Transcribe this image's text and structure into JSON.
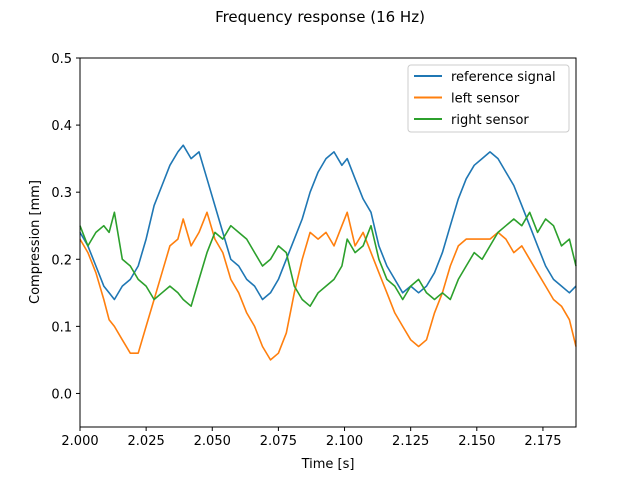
{
  "chart_data": {
    "type": "line",
    "title": "Frequency response (16 Hz)",
    "xlabel": "Time [s]",
    "ylabel": "Compression [mm]",
    "xlim": [
      2.0,
      2.1875
    ],
    "ylim": [
      -0.05,
      0.5
    ],
    "xticks": [
      2.0,
      2.025,
      2.05,
      2.075,
      2.1,
      2.125,
      2.15,
      2.175
    ],
    "xtick_labels": [
      "2.000",
      "2.025",
      "2.050",
      "2.075",
      "2.100",
      "2.125",
      "2.150",
      "2.175"
    ],
    "yticks": [
      0.0,
      0.1,
      0.2,
      0.3,
      0.4,
      0.5
    ],
    "ytick_labels": [
      "0.0",
      "0.1",
      "0.2",
      "0.3",
      "0.4",
      "0.5"
    ],
    "grid": false,
    "legend_position": "top-right",
    "series": [
      {
        "name": "reference signal",
        "color": "#1f77b4",
        "x": [
          2.0,
          2.003,
          2.006,
          2.009,
          2.011,
          2.013,
          2.016,
          2.019,
          2.022,
          2.025,
          2.028,
          2.031,
          2.034,
          2.037,
          2.039,
          2.042,
          2.045,
          2.048,
          2.051,
          2.054,
          2.057,
          2.06,
          2.063,
          2.066,
          2.069,
          2.072,
          2.075,
          2.078,
          2.081,
          2.084,
          2.087,
          2.09,
          2.093,
          2.096,
          2.099,
          2.101,
          2.104,
          2.107,
          2.11,
          2.113,
          2.116,
          2.119,
          2.122,
          2.125,
          2.128,
          2.131,
          2.134,
          2.137,
          2.14,
          2.143,
          2.146,
          2.149,
          2.152,
          2.155,
          2.158,
          2.161,
          2.164,
          2.167,
          2.17,
          2.173,
          2.176,
          2.179,
          2.182,
          2.185,
          2.1875
        ],
        "y": [
          0.24,
          0.22,
          0.19,
          0.16,
          0.15,
          0.14,
          0.16,
          0.17,
          0.19,
          0.23,
          0.28,
          0.31,
          0.34,
          0.36,
          0.37,
          0.35,
          0.36,
          0.32,
          0.28,
          0.24,
          0.2,
          0.19,
          0.17,
          0.16,
          0.14,
          0.15,
          0.17,
          0.2,
          0.23,
          0.26,
          0.3,
          0.33,
          0.35,
          0.36,
          0.34,
          0.35,
          0.32,
          0.29,
          0.27,
          0.22,
          0.19,
          0.17,
          0.15,
          0.16,
          0.15,
          0.16,
          0.18,
          0.21,
          0.25,
          0.29,
          0.32,
          0.34,
          0.35,
          0.36,
          0.35,
          0.33,
          0.31,
          0.28,
          0.25,
          0.22,
          0.19,
          0.17,
          0.16,
          0.15,
          0.16
        ]
      },
      {
        "name": "left sensor",
        "color": "#ff7f0e",
        "x": [
          2.0,
          2.003,
          2.006,
          2.009,
          2.011,
          2.013,
          2.016,
          2.019,
          2.022,
          2.025,
          2.028,
          2.031,
          2.034,
          2.037,
          2.039,
          2.042,
          2.045,
          2.048,
          2.051,
          2.054,
          2.057,
          2.06,
          2.063,
          2.066,
          2.069,
          2.072,
          2.075,
          2.078,
          2.081,
          2.084,
          2.087,
          2.09,
          2.093,
          2.096,
          2.099,
          2.101,
          2.104,
          2.107,
          2.11,
          2.113,
          2.116,
          2.119,
          2.122,
          2.125,
          2.128,
          2.131,
          2.134,
          2.137,
          2.14,
          2.143,
          2.146,
          2.149,
          2.152,
          2.155,
          2.158,
          2.161,
          2.164,
          2.167,
          2.17,
          2.173,
          2.176,
          2.179,
          2.182,
          2.185,
          2.1875
        ],
        "y": [
          0.23,
          0.21,
          0.18,
          0.14,
          0.11,
          0.1,
          0.08,
          0.06,
          0.06,
          0.1,
          0.14,
          0.18,
          0.22,
          0.23,
          0.26,
          0.22,
          0.24,
          0.27,
          0.23,
          0.21,
          0.17,
          0.15,
          0.12,
          0.1,
          0.07,
          0.05,
          0.06,
          0.09,
          0.15,
          0.2,
          0.24,
          0.23,
          0.24,
          0.22,
          0.25,
          0.27,
          0.22,
          0.24,
          0.21,
          0.18,
          0.15,
          0.12,
          0.1,
          0.08,
          0.07,
          0.08,
          0.12,
          0.15,
          0.19,
          0.22,
          0.23,
          0.23,
          0.23,
          0.23,
          0.24,
          0.23,
          0.21,
          0.22,
          0.2,
          0.18,
          0.16,
          0.14,
          0.13,
          0.11,
          0.07
        ]
      },
      {
        "name": "right sensor",
        "color": "#2ca02c",
        "x": [
          2.0,
          2.003,
          2.006,
          2.009,
          2.011,
          2.013,
          2.016,
          2.019,
          2.022,
          2.025,
          2.028,
          2.031,
          2.034,
          2.037,
          2.039,
          2.042,
          2.045,
          2.048,
          2.051,
          2.054,
          2.057,
          2.06,
          2.063,
          2.066,
          2.069,
          2.072,
          2.075,
          2.078,
          2.081,
          2.084,
          2.087,
          2.09,
          2.093,
          2.096,
          2.099,
          2.101,
          2.104,
          2.107,
          2.11,
          2.113,
          2.116,
          2.119,
          2.122,
          2.125,
          2.128,
          2.131,
          2.134,
          2.137,
          2.14,
          2.143,
          2.146,
          2.149,
          2.152,
          2.155,
          2.158,
          2.161,
          2.164,
          2.167,
          2.17,
          2.173,
          2.176,
          2.179,
          2.182,
          2.185,
          2.1875
        ],
        "y": [
          0.25,
          0.22,
          0.24,
          0.25,
          0.24,
          0.27,
          0.2,
          0.19,
          0.17,
          0.16,
          0.14,
          0.15,
          0.16,
          0.15,
          0.14,
          0.13,
          0.17,
          0.21,
          0.24,
          0.23,
          0.25,
          0.24,
          0.23,
          0.21,
          0.19,
          0.2,
          0.22,
          0.21,
          0.16,
          0.14,
          0.13,
          0.15,
          0.16,
          0.17,
          0.19,
          0.23,
          0.21,
          0.22,
          0.25,
          0.2,
          0.17,
          0.16,
          0.14,
          0.16,
          0.17,
          0.15,
          0.14,
          0.15,
          0.14,
          0.17,
          0.19,
          0.21,
          0.2,
          0.22,
          0.24,
          0.25,
          0.26,
          0.25,
          0.27,
          0.24,
          0.26,
          0.25,
          0.22,
          0.23,
          0.19
        ]
      }
    ]
  }
}
